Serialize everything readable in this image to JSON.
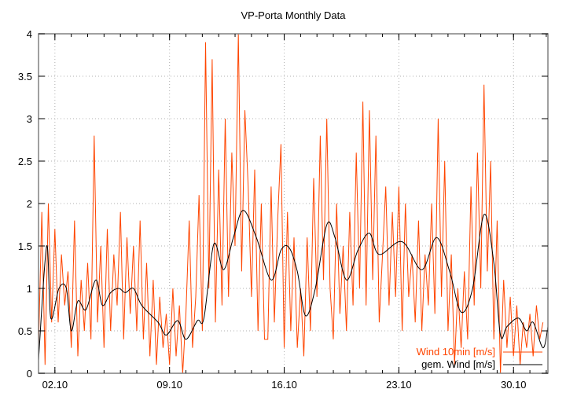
{
  "chart_data": {
    "type": "line",
    "title": "VP-Porta Monthly Data",
    "xlabel": "",
    "ylabel": "",
    "x_unit": "days since 01.10 00:00",
    "xlim": [
      0,
      31.1
    ],
    "ylim": [
      0,
      4
    ],
    "grid": true,
    "legend_position": "bottom-right",
    "x_ticks": [
      {
        "value": 1,
        "label": "02.10"
      },
      {
        "value": 8,
        "label": "09.10"
      },
      {
        "value": 15,
        "label": "16.10"
      },
      {
        "value": 22,
        "label": "23.10"
      },
      {
        "value": 29,
        "label": "30.10"
      }
    ],
    "y_ticks": [
      {
        "value": 0,
        "label": "0"
      },
      {
        "value": 0.5,
        "label": "0.5"
      },
      {
        "value": 1,
        "label": "1"
      },
      {
        "value": 1.5,
        "label": "1.5"
      },
      {
        "value": 2,
        "label": "2"
      },
      {
        "value": 2.5,
        "label": "2.5"
      },
      {
        "value": 3,
        "label": "3"
      },
      {
        "value": 3.5,
        "label": "3.5"
      },
      {
        "value": 4,
        "label": "4"
      }
    ],
    "series": [
      {
        "name": "Wind 10min [m/s]",
        "color": "#ff4500",
        "samples_per_day": 5,
        "values": [
          0.3,
          1.9,
          0.1,
          2.0,
          0.6,
          1.7,
          0.6,
          1.4,
          0.8,
          1.2,
          0.3,
          1.8,
          0.2,
          1.1,
          0.5,
          1.3,
          0.4,
          2.8,
          0.6,
          1.5,
          0.3,
          1.7,
          0.5,
          1.4,
          0.8,
          1.9,
          0.4,
          1.6,
          0.7,
          1.5,
          0.5,
          1.8,
          0.4,
          1.3,
          0.2,
          1.1,
          0.1,
          0.9,
          0.3,
          0.7,
          0.1,
          1.0,
          0.2,
          0.8,
          0.0,
          0.7,
          1.8,
          0.3,
          0.9,
          2.1,
          0.5,
          3.9,
          1.0,
          3.7,
          0.6,
          2.4,
          0.8,
          3.0,
          0.9,
          2.6,
          1.5,
          4.0,
          1.2,
          3.1,
          2.2,
          0.9,
          2.4,
          0.5,
          2.0,
          0.4,
          0.4,
          2.2,
          0.6,
          1.8,
          2.7,
          0.3,
          1.9,
          0.5,
          1.6,
          0.3,
          1.0,
          0.2,
          1.6,
          0.5,
          2.3,
          0.9,
          2.8,
          1.1,
          3.0,
          1.0,
          0.4,
          2.0,
          0.7,
          1.5,
          0.5,
          1.9,
          0.8,
          2.6,
          1.0,
          3.2,
          0.8,
          3.1,
          1.1,
          2.8,
          0.6,
          1.4,
          2.2,
          0.8,
          1.9,
          0.9,
          2.2,
          0.5,
          2.0,
          0.9,
          1.4,
          0.6,
          1.8,
          0.5,
          1.4,
          0.8,
          2.0,
          0.7,
          3.0,
          0.9,
          2.5,
          0.5,
          1.4,
          0.1,
          1.0,
          0.3,
          1.2,
          0.4,
          2.2,
          0.8,
          2.6,
          1.0,
          3.4,
          1.2,
          2.5,
          0.4,
          1.8,
          0.0,
          1.1,
          0.3,
          0.9,
          0.2,
          0.8,
          0.1,
          0.6,
          0.3,
          0.7,
          0.2,
          0.8,
          0.4,
          0.6
        ]
      },
      {
        "name": "gem. Wind [m/s]",
        "color": "#000000",
        "points": [
          [
            0,
            0.15
          ],
          [
            0.5,
            1.5
          ],
          [
            0.75,
            0.65
          ],
          [
            1.25,
            1.0
          ],
          [
            1.7,
            1.0
          ],
          [
            2.0,
            0.5
          ],
          [
            2.4,
            0.85
          ],
          [
            2.9,
            0.75
          ],
          [
            3.5,
            1.1
          ],
          [
            3.9,
            0.8
          ],
          [
            4.4,
            0.95
          ],
          [
            4.9,
            1.0
          ],
          [
            5.3,
            0.95
          ],
          [
            5.8,
            1.0
          ],
          [
            6.3,
            0.8
          ],
          [
            7.3,
            0.6
          ],
          [
            7.8,
            0.45
          ],
          [
            8.5,
            0.62
          ],
          [
            9.0,
            0.4
          ],
          [
            9.7,
            0.62
          ],
          [
            10.1,
            0.65
          ],
          [
            10.7,
            1.52
          ],
          [
            11.3,
            1.22
          ],
          [
            11.9,
            1.6
          ],
          [
            12.5,
            1.92
          ],
          [
            13.3,
            1.6
          ],
          [
            14.2,
            1.1
          ],
          [
            14.8,
            1.45
          ],
          [
            15.3,
            1.48
          ],
          [
            15.8,
            1.2
          ],
          [
            16.3,
            0.68
          ],
          [
            16.9,
            1.0
          ],
          [
            17.6,
            1.75
          ],
          [
            18.1,
            1.6
          ],
          [
            18.8,
            1.1
          ],
          [
            19.5,
            1.45
          ],
          [
            20.2,
            1.65
          ],
          [
            20.8,
            1.4
          ],
          [
            22.2,
            1.55
          ],
          [
            23.4,
            1.22
          ],
          [
            24.3,
            1.6
          ],
          [
            25.1,
            1.2
          ],
          [
            25.8,
            0.72
          ],
          [
            26.5,
            1.0
          ],
          [
            27.2,
            1.87
          ],
          [
            27.8,
            1.3
          ],
          [
            28.2,
            0.45
          ],
          [
            28.6,
            0.55
          ],
          [
            29.3,
            0.65
          ],
          [
            29.8,
            0.5
          ],
          [
            30.2,
            0.6
          ],
          [
            30.8,
            0.3
          ],
          [
            31.1,
            0.55
          ]
        ]
      }
    ]
  }
}
